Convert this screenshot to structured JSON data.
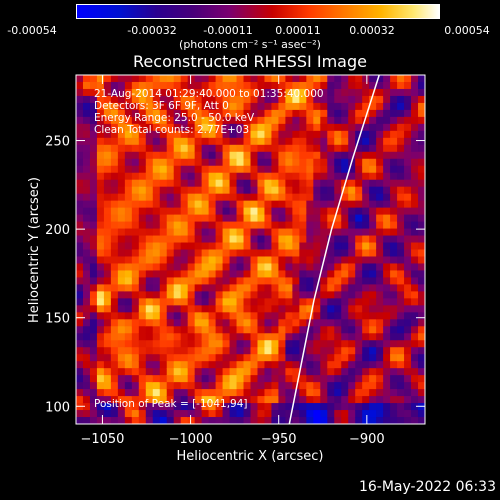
{
  "colorbar": {
    "ticks": [
      "-0.00054",
      "-0.00032",
      "-0.00011",
      "0.00011",
      "0.00032",
      "0.00054"
    ],
    "unit_label": "(photons cm⁻² s⁻¹ asec⁻²)",
    "range": [
      -0.00054,
      0.00054
    ]
  },
  "footer": {
    "date": "16-May-2022 06:33"
  },
  "chart_data": {
    "type": "heatmap",
    "title": "Reconstructed RHESSI Image",
    "xlabel": "Heliocentric X (arcsec)",
    "ylabel": "Heliocentric Y (arcsec)",
    "xlim": [
      -1065,
      -867
    ],
    "ylim": [
      90,
      287
    ],
    "xticks": [
      -1050,
      -1000,
      -950,
      -900
    ],
    "yticks": [
      100,
      150,
      200,
      250
    ],
    "annotations": [
      "21-Aug-2014 01:29:40.000 to 01:35:40.000",
      "Detectors: 3F 6F 9F, Att 0",
      "Energy Range: 25.0 - 50.0 keV",
      "Clean     Total counts: 2.77E+03"
    ],
    "peak_label": "Position of Peak = [-1041,94]",
    "peak": [
      -1041,
      94
    ],
    "limb_curve": [
      [
        -944,
        90
      ],
      [
        -938,
        120
      ],
      [
        -930,
        160
      ],
      [
        -920,
        200
      ],
      [
        -908,
        240
      ],
      [
        -893,
        287
      ]
    ]
  }
}
